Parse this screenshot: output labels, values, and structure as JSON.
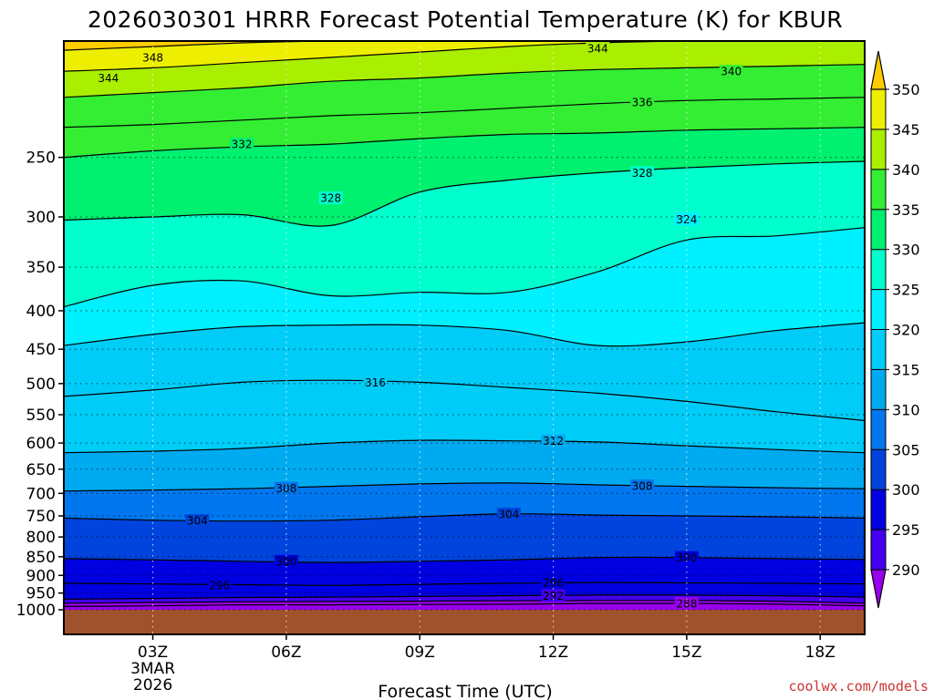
{
  "chart_data": {
    "type": "contour",
    "title": "2026030301 HRRR Forecast Potential Temperature (K) for KBUR",
    "xlabel": "Forecast Time (UTC)",
    "ylabel": "",
    "credit": "coolwx.com/models",
    "credit_color": "#cc3333",
    "ground_color": "#a0522d",
    "x_ticks": [
      {
        "label": "03Z",
        "hour": 3
      },
      {
        "label": "06Z",
        "hour": 6
      },
      {
        "label": "09Z",
        "hour": 9
      },
      {
        "label": "12Z",
        "hour": 12
      },
      {
        "label": "15Z",
        "hour": 15
      },
      {
        "label": "18Z",
        "hour": 18
      }
    ],
    "date_label": [
      "3MAR",
      "2026"
    ],
    "xlim": [
      1,
      19
    ],
    "y_ticks": [
      250,
      300,
      350,
      400,
      450,
      500,
      550,
      600,
      650,
      700,
      750,
      800,
      850,
      900,
      950,
      1000
    ],
    "ylim": [
      175,
      1000
    ],
    "colorbar": {
      "min": 285,
      "max": 350,
      "ticks": [
        350,
        345,
        340,
        335,
        330,
        325,
        320,
        315,
        310,
        305,
        300,
        295,
        290
      ],
      "bands": [
        {
          "from": 285,
          "to": 290,
          "color": "#9900ee"
        },
        {
          "from": 290,
          "to": 295,
          "color": "#4400ee"
        },
        {
          "from": 295,
          "to": 300,
          "color": "#0000e0"
        },
        {
          "from": 300,
          "to": 305,
          "color": "#0044dd"
        },
        {
          "from": 305,
          "to": 310,
          "color": "#0077ee"
        },
        {
          "from": 310,
          "to": 315,
          "color": "#00aaf0"
        },
        {
          "from": 315,
          "to": 320,
          "color": "#00ccf8"
        },
        {
          "from": 320,
          "to": 325,
          "color": "#00f0ff"
        },
        {
          "from": 325,
          "to": 330,
          "color": "#00ffcc"
        },
        {
          "from": 330,
          "to": 335,
          "color": "#00f070"
        },
        {
          "from": 335,
          "to": 340,
          "color": "#33ee33"
        },
        {
          "from": 340,
          "to": 345,
          "color": "#aaee00"
        },
        {
          "from": 345,
          "to": 350,
          "color": "#eeee00"
        },
        {
          "from": 350,
          "to": 355,
          "color": "#ffcc00"
        }
      ]
    },
    "x_nodes": [
      1,
      3,
      5,
      7,
      9,
      11,
      13,
      15,
      17,
      19
    ],
    "isentropes": [
      {
        "theta": 288,
        "p": [
          990,
          988,
          985,
          985,
          984,
          983,
          981,
          981,
          983,
          988
        ]
      },
      {
        "theta": 290,
        "p": [
          980,
          978,
          976,
          975,
          974,
          973,
          972,
          972,
          974,
          980
        ]
      },
      {
        "theta": 292,
        "p": [
          968,
          966,
          963,
          962,
          960,
          958,
          956,
          956,
          958,
          962
        ]
      },
      {
        "theta": 296,
        "p": [
          922,
          924,
          926,
          928,
          925,
          922,
          920,
          921,
          922,
          924
        ]
      },
      {
        "theta": 300,
        "p": [
          855,
          858,
          862,
          865,
          862,
          858,
          852,
          852,
          855,
          857
        ]
      },
      {
        "theta": 304,
        "p": [
          755,
          760,
          762,
          760,
          752,
          745,
          748,
          750,
          752,
          755
        ]
      },
      {
        "theta": 308,
        "p": [
          695,
          693,
          690,
          685,
          680,
          678,
          682,
          685,
          688,
          690
        ]
      },
      {
        "theta": 312,
        "p": [
          618,
          615,
          610,
          600,
          595,
          596,
          598,
          605,
          612,
          618
        ]
      },
      {
        "theta": 316,
        "p": [
          520,
          510,
          498,
          495,
          498,
          506,
          515,
          528,
          545,
          560
        ]
      },
      {
        "theta": 320,
        "p": [
          445,
          430,
          420,
          418,
          418,
          425,
          445,
          440,
          425,
          415
        ]
      },
      {
        "theta": 324,
        "p": [
          395,
          370,
          365,
          382,
          378,
          378,
          355,
          322,
          318,
          310
        ]
      },
      {
        "theta": 328,
        "p": [
          303,
          300,
          298,
          308,
          278,
          268,
          262,
          258,
          255,
          253
        ]
      },
      {
        "theta": 332,
        "p": [
          250,
          245,
          242,
          240,
          236,
          233,
          232,
          230,
          229,
          228
        ]
      },
      {
        "theta": 336,
        "p": [
          228,
          226,
          223,
          220,
          218,
          215,
          212,
          210,
          209,
          208
        ]
      },
      {
        "theta": 340,
        "p": [
          208,
          205,
          202,
          198,
          196,
          193,
          191,
          190,
          189,
          188
        ]
      },
      {
        "theta": 344,
        "p": [
          192,
          190,
          187,
          184,
          181,
          178,
          176,
          175,
          175,
          175
        ]
      },
      {
        "theta": 348,
        "p": [
          180,
          178,
          176,
          175,
          175,
          175,
          175,
          175,
          175,
          175
        ]
      }
    ],
    "contour_labels": [
      {
        "text": "344",
        "x": 2.0,
        "p": 196
      },
      {
        "text": "348",
        "x": 3.0,
        "p": 184
      },
      {
        "text": "344",
        "x": 13.0,
        "p": 179
      },
      {
        "text": "340",
        "x": 16.0,
        "p": 192
      },
      {
        "text": "336",
        "x": 14.0,
        "p": 211
      },
      {
        "text": "332",
        "x": 5.0,
        "p": 240
      },
      {
        "text": "328",
        "x": 14.0,
        "p": 262
      },
      {
        "text": "328",
        "x": 7.0,
        "p": 283
      },
      {
        "text": "324",
        "x": 15.0,
        "p": 302
      },
      {
        "text": "316",
        "x": 8.0,
        "p": 498
      },
      {
        "text": "312",
        "x": 12.0,
        "p": 596
      },
      {
        "text": "308",
        "x": 6.0,
        "p": 689
      },
      {
        "text": "308",
        "x": 14.0,
        "p": 684
      },
      {
        "text": "304",
        "x": 11.0,
        "p": 746
      },
      {
        "text": "304",
        "x": 4.0,
        "p": 761
      },
      {
        "text": "300",
        "x": 6.0,
        "p": 862
      },
      {
        "text": "300",
        "x": 15.0,
        "p": 852
      },
      {
        "text": "296",
        "x": 4.5,
        "p": 927
      },
      {
        "text": "296",
        "x": 12.0,
        "p": 920
      },
      {
        "text": "292",
        "x": 12.0,
        "p": 957
      },
      {
        "text": "288",
        "x": 15.0,
        "p": 981
      }
    ]
  }
}
